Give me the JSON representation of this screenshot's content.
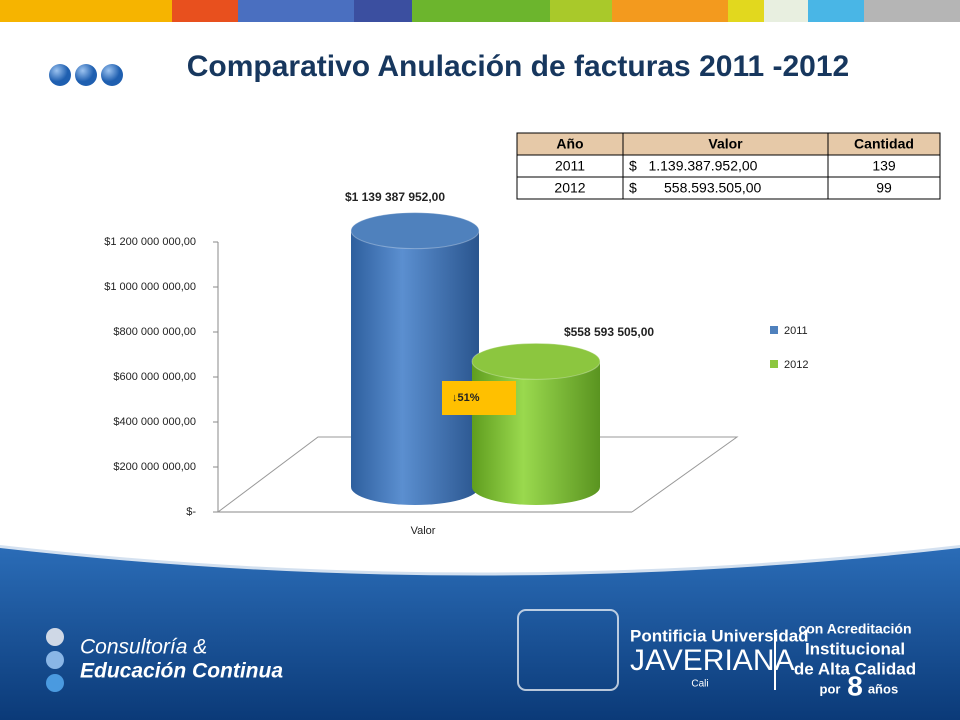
{
  "chart_data": {
    "type": "bar",
    "title": "Comparativo Anulación de facturas 2011 -2012",
    "categories": [
      "Valor"
    ],
    "series": [
      {
        "name": "2011",
        "color": "#4f81bd",
        "values": [
          1139387952
        ],
        "value_labels": [
          "$1 139 387 952,00"
        ]
      },
      {
        "name": "2012",
        "color": "#8cc63f",
        "values": [
          558593505
        ],
        "value_labels": [
          "$558 593 505,00"
        ]
      }
    ],
    "ylim": [
      0,
      1200000000
    ],
    "yticks": [
      {
        "value": 0,
        "label": "$-"
      },
      {
        "value": 200000000,
        "label": "$200 000 000,00"
      },
      {
        "value": 400000000,
        "label": "$400 000 000,00"
      },
      {
        "value": 600000000,
        "label": "$600 000 000,00"
      },
      {
        "value": 800000000,
        "label": "$800 000 000,00"
      },
      {
        "value": 1000000000,
        "label": "$1 000 000 000,00"
      },
      {
        "value": 1200000000,
        "label": "$1 200 000 000,00"
      }
    ],
    "legend": "right",
    "annotation": "↓51%"
  },
  "table": {
    "header": [
      "Año",
      "Valor",
      "Cantidad"
    ],
    "rows": [
      [
        "2011",
        "$   1.139.387.952,00",
        "139"
      ],
      [
        "2012",
        "$       558.593.505,00",
        "99"
      ]
    ]
  },
  "footer": {
    "left": [
      "Consultoría &",
      "Educación Continua"
    ],
    "university": [
      "Pontificia Universidad",
      "JAVERIANA",
      "Cali"
    ],
    "accreditation": [
      "con Acreditación",
      "Institucional",
      "de Alta Calidad",
      "por",
      "8",
      "años"
    ]
  }
}
